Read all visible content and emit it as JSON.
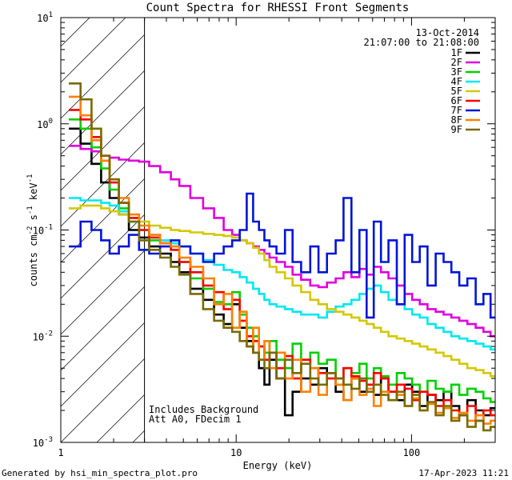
{
  "chart_data": {
    "type": "line",
    "title": "Count Spectra for RHESSI Front Segments",
    "xlabel": "Energy (keV)",
    "ylabel": "counts cm-2 s-1 keV-1",
    "ylabel_parts": {
      "base": "counts cm",
      "sup1": "-2",
      "mid1": " s",
      "sup2": "-1",
      "mid2": " keV",
      "sup3": "-1"
    },
    "xscale": "log",
    "yscale": "log",
    "xlim": [
      1,
      300
    ],
    "ylim": [
      0.001,
      10
    ],
    "x_tick_labels": [
      "1",
      "10",
      "100"
    ],
    "y_tick_labels": [
      {
        "base": "10",
        "exp": "-3"
      },
      {
        "base": "10",
        "exp": "-2"
      },
      {
        "base": "10",
        "exp": "-1"
      },
      {
        "base": "10",
        "exp": "0"
      },
      {
        "base": "10",
        "exp": "1"
      }
    ],
    "date": "13-Oct-2014",
    "time_range": "21:07:00 to 21:08:00",
    "annotation_lines": [
      "Includes Background",
      "Att A0, FDecim 1"
    ],
    "shaded_region_kev": [
      1,
      3
    ],
    "footer_left": "Generated by hsi_min_spectra_plot.pro",
    "footer_right": "17-Apr-2023 11:21",
    "legend_position": "top-right",
    "energies": [
      1.2,
      1.4,
      1.6,
      1.8,
      2.0,
      2.3,
      2.6,
      3.0,
      3.4,
      4.0,
      4.5,
      5,
      6,
      7,
      8,
      9,
      10,
      11,
      12,
      13,
      14,
      15,
      16,
      18,
      20,
      22,
      25,
      28,
      31,
      35,
      39,
      43,
      48,
      53,
      58,
      64,
      70,
      78,
      87,
      96,
      106,
      117,
      130,
      145,
      160,
      178,
      197,
      220,
      245,
      270,
      295
    ],
    "series": [
      {
        "name": "1F",
        "color": "#000000",
        "values": [
          0.9,
          0.65,
          0.42,
          0.28,
          0.2,
          0.14,
          0.1,
          0.085,
          0.07,
          0.06,
          0.05,
          0.04,
          0.028,
          0.022,
          0.016,
          0.013,
          0.02,
          0.012,
          0.009,
          0.007,
          0.005,
          0.0035,
          0.006,
          0.004,
          0.0018,
          0.003,
          0.004,
          0.0035,
          0.005,
          0.0045,
          0.003,
          0.0025,
          0.004,
          0.003,
          0.0035,
          0.0028,
          0.004,
          0.003,
          0.0025,
          0.0035,
          0.003,
          0.0022,
          0.0028,
          0.0025,
          0.003,
          0.0022,
          0.0018,
          0.0025,
          0.002,
          0.0018,
          0.0021
        ]
      },
      {
        "name": "2F",
        "color": "#e000e0",
        "values": [
          0.62,
          0.58,
          0.55,
          0.5,
          0.48,
          0.46,
          0.45,
          0.44,
          0.4,
          0.35,
          0.3,
          0.26,
          0.2,
          0.16,
          0.13,
          0.1,
          0.09,
          0.08,
          0.075,
          0.07,
          0.065,
          0.06,
          0.055,
          0.05,
          0.045,
          0.038,
          0.034,
          0.03,
          0.029,
          0.032,
          0.035,
          0.04,
          0.036,
          0.043,
          0.038,
          0.045,
          0.04,
          0.035,
          0.03,
          0.025,
          0.022,
          0.02,
          0.018,
          0.017,
          0.016,
          0.015,
          0.014,
          0.013,
          0.012,
          0.011,
          0.01
        ]
      },
      {
        "name": "3F",
        "color": "#00d000",
        "values": [
          1.1,
          0.9,
          0.6,
          0.38,
          0.24,
          0.16,
          0.12,
          0.1,
          0.08,
          0.075,
          0.065,
          0.05,
          0.035,
          0.028,
          0.021,
          0.02,
          0.026,
          0.016,
          0.012,
          0.01,
          0.008,
          0.007,
          0.009,
          0.006,
          0.005,
          0.0085,
          0.006,
          0.007,
          0.0055,
          0.006,
          0.004,
          0.005,
          0.0045,
          0.0055,
          0.004,
          0.005,
          0.0042,
          0.0035,
          0.0045,
          0.004,
          0.0035,
          0.003,
          0.0038,
          0.0032,
          0.003,
          0.0035,
          0.0028,
          0.0032,
          0.003,
          0.0026,
          0.0024
        ]
      },
      {
        "name": "4F",
        "color": "#00e8f0",
        "values": [
          0.2,
          0.19,
          0.19,
          0.18,
          0.17,
          0.15,
          0.12,
          0.1,
          0.09,
          0.08,
          0.075,
          0.07,
          0.06,
          0.052,
          0.047,
          0.042,
          0.04,
          0.036,
          0.032,
          0.028,
          0.025,
          0.022,
          0.02,
          0.019,
          0.018,
          0.017,
          0.016,
          0.016,
          0.015,
          0.017,
          0.019,
          0.02,
          0.022,
          0.025,
          0.028,
          0.03,
          0.026,
          0.022,
          0.02,
          0.018,
          0.016,
          0.015,
          0.013,
          0.012,
          0.011,
          0.01,
          0.0095,
          0.009,
          0.0085,
          0.008,
          0.0075
        ]
      },
      {
        "name": "5F",
        "color": "#d4c800",
        "values": [
          0.16,
          0.17,
          0.17,
          0.16,
          0.15,
          0.14,
          0.13,
          0.12,
          0.11,
          0.105,
          0.1,
          0.098,
          0.095,
          0.092,
          0.09,
          0.088,
          0.085,
          0.08,
          0.075,
          0.068,
          0.06,
          0.052,
          0.045,
          0.04,
          0.035,
          0.03,
          0.026,
          0.022,
          0.02,
          0.018,
          0.017,
          0.016,
          0.015,
          0.014,
          0.013,
          0.012,
          0.011,
          0.01,
          0.0095,
          0.009,
          0.0085,
          0.008,
          0.0075,
          0.007,
          0.0065,
          0.006,
          0.0055,
          0.005,
          0.0048,
          0.0045,
          0.0042
        ]
      },
      {
        "name": "6F",
        "color": "#ff0000",
        "values": [
          1.35,
          1.1,
          0.75,
          0.45,
          0.28,
          0.18,
          0.13,
          0.1,
          0.085,
          0.075,
          0.065,
          0.05,
          0.04,
          0.03,
          0.026,
          0.018,
          0.022,
          0.014,
          0.01,
          0.009,
          0.008,
          0.006,
          0.007,
          0.005,
          0.0065,
          0.004,
          0.006,
          0.005,
          0.0045,
          0.004,
          0.0035,
          0.005,
          0.0042,
          0.0038,
          0.0035,
          0.0045,
          0.004,
          0.003,
          0.0035,
          0.0032,
          0.0025,
          0.003,
          0.0028,
          0.0022,
          0.0025,
          0.002,
          0.0018,
          0.0022,
          0.0016,
          0.002,
          0.0018
        ]
      },
      {
        "name": "7F",
        "color": "#0014d8",
        "values": [
          0.07,
          0.12,
          0.1,
          0.08,
          0.06,
          0.07,
          0.09,
          0.065,
          0.06,
          0.07,
          0.08,
          0.07,
          0.06,
          0.05,
          0.06,
          0.07,
          0.08,
          0.1,
          0.22,
          0.12,
          0.1,
          0.08,
          0.07,
          0.06,
          0.1,
          0.05,
          0.04,
          0.07,
          0.04,
          0.06,
          0.08,
          0.2,
          0.04,
          0.1,
          0.015,
          0.12,
          0.05,
          0.08,
          0.02,
          0.09,
          0.05,
          0.07,
          0.03,
          0.06,
          0.05,
          0.04,
          0.03,
          0.035,
          0.02,
          0.025,
          0.015
        ]
      },
      {
        "name": "8F",
        "color": "#ff8000",
        "values": [
          1.8,
          1.2,
          0.7,
          0.45,
          0.3,
          0.2,
          0.14,
          0.11,
          0.09,
          0.075,
          0.07,
          0.055,
          0.045,
          0.035,
          0.02,
          0.025,
          0.012,
          0.017,
          0.008,
          0.012,
          0.006,
          0.009,
          0.005,
          0.007,
          0.004,
          0.006,
          0.003,
          0.005,
          0.0028,
          0.0045,
          0.0035,
          0.0025,
          0.004,
          0.0028,
          0.0032,
          0.0022,
          0.003,
          0.0025,
          0.0028,
          0.0022,
          0.0026,
          0.002,
          0.0023,
          0.0019,
          0.0021,
          0.0017,
          0.0019,
          0.0016,
          0.0018,
          0.0015,
          0.0016
        ]
      },
      {
        "name": "9F",
        "color": "#7a6a00",
        "values": [
          2.4,
          1.7,
          0.9,
          0.5,
          0.3,
          0.18,
          0.12,
          0.08,
          0.065,
          0.055,
          0.045,
          0.038,
          0.025,
          0.018,
          0.014,
          0.012,
          0.011,
          0.009,
          0.008,
          0.007,
          0.006,
          0.005,
          0.007,
          0.004,
          0.006,
          0.0045,
          0.0055,
          0.004,
          0.0035,
          0.0045,
          0.004,
          0.0035,
          0.0032,
          0.004,
          0.003,
          0.0035,
          0.0028,
          0.0025,
          0.003,
          0.0022,
          0.0028,
          0.002,
          0.0024,
          0.0018,
          0.0022,
          0.0016,
          0.0018,
          0.0014,
          0.0016,
          0.0013,
          0.0014
        ]
      }
    ]
  }
}
